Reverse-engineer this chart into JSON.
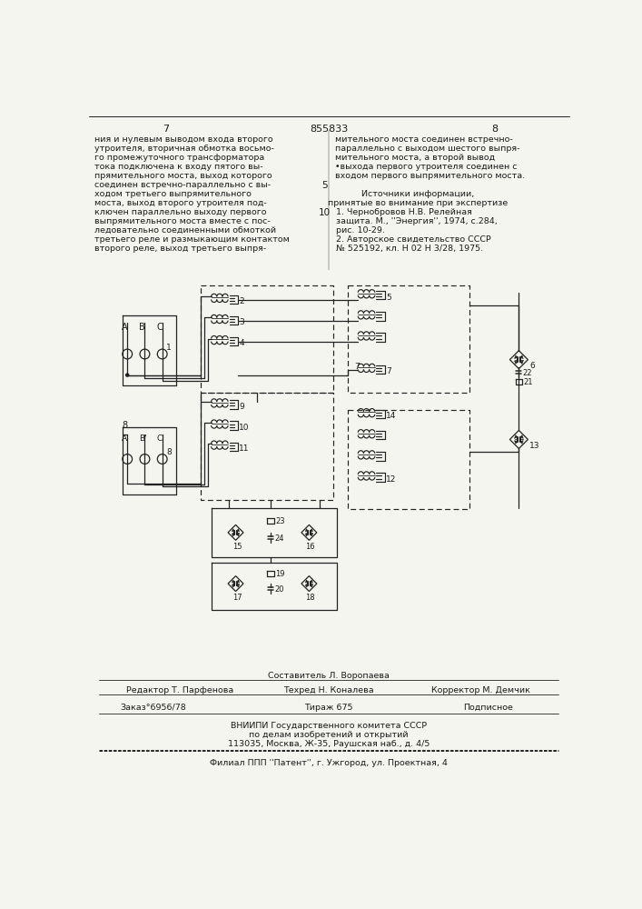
{
  "page_number_left": "7",
  "page_number_center": "855833",
  "page_number_right": "8",
  "bg_color": "#f5f5f0",
  "text_color": "#1a1a1a",
  "line_color": "#1a1a1a",
  "lc": "#222222"
}
